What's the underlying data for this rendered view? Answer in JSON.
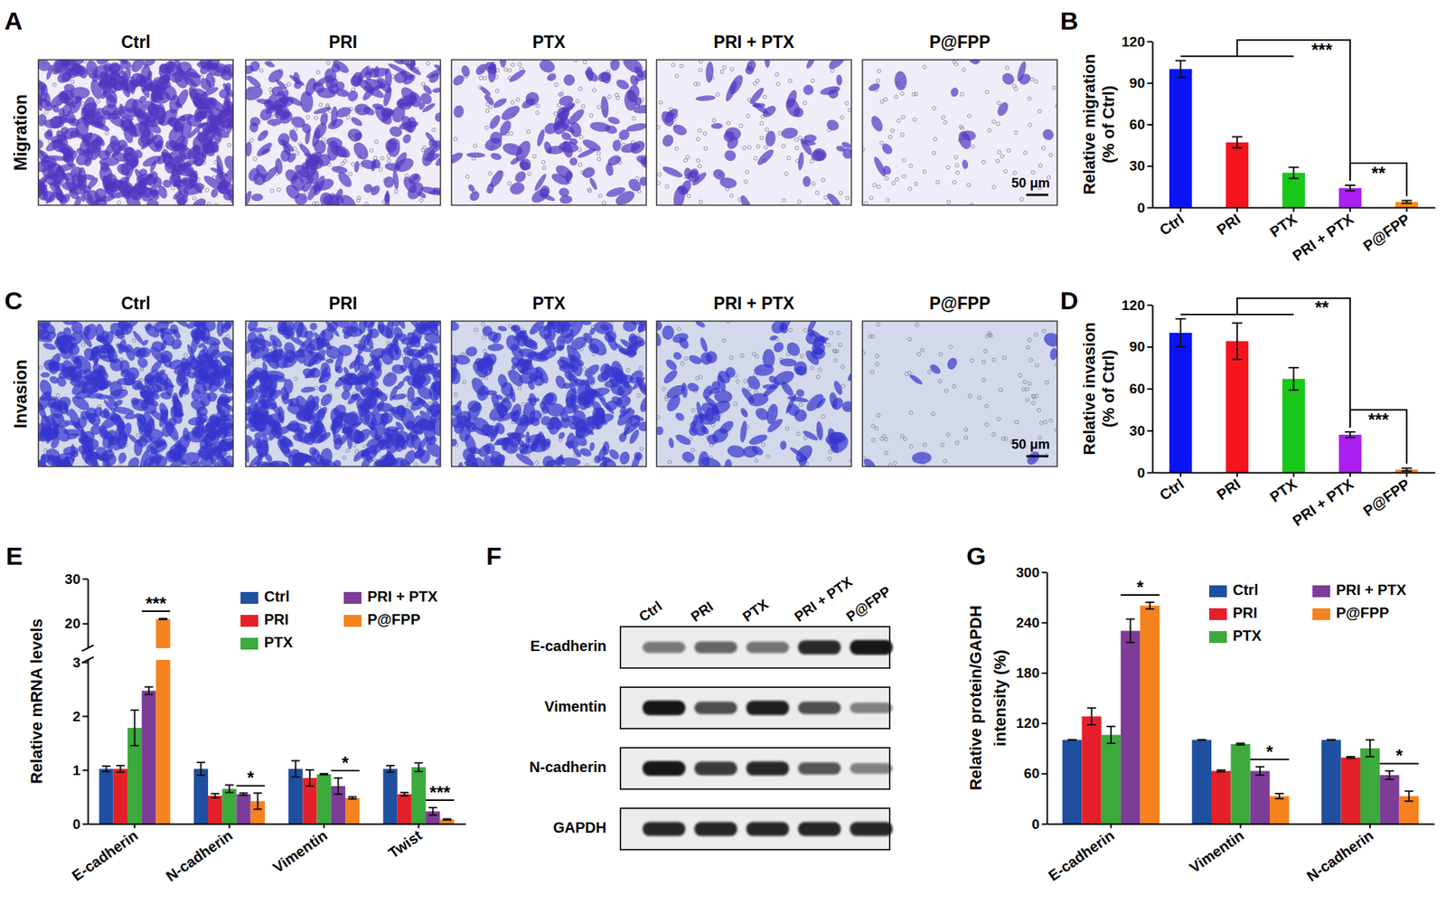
{
  "micrographs": [
    {
      "panel": "A",
      "row_label": "Migration",
      "titles": [
        "Ctrl",
        "PRI",
        "PTX",
        "PRI + PTX",
        "P@FPP"
      ],
      "scale_bar": "50 μm"
    },
    {
      "panel": "C",
      "row_label": "Invasion",
      "titles": [
        "Ctrl",
        "PRI",
        "PTX",
        "PRI + PTX",
        "P@FPP"
      ],
      "scale_bar": "50 μm"
    }
  ],
  "blot": {
    "panel": "F",
    "lanes": [
      "Ctrl",
      "PRI",
      "PTX",
      "PRI + PTX",
      "P@FPP"
    ],
    "proteins": [
      "E-cadherin",
      "Vimentin",
      "N-cadherin",
      "GAPDH"
    ]
  },
  "chart_data": [
    {
      "panel": "B",
      "type": "bar",
      "y_label": [
        "Relative migration",
        "(% of Ctrl)"
      ],
      "categories": [
        "Ctrl",
        "PRI",
        "PTX",
        "PRI + PTX",
        "P@FPP"
      ],
      "values": [
        100,
        47,
        25,
        14,
        4
      ],
      "errors": [
        6,
        4,
        4,
        2,
        1
      ],
      "colors": [
        "#0a14f5",
        "#f5141e",
        "#19c819",
        "#aa1ef0",
        "#ff8c0a"
      ],
      "ylim": [
        0,
        120
      ],
      "yticks": [
        0,
        30,
        60,
        90,
        120
      ],
      "annotations": [
        {
          "text": "***",
          "ref": "Ctrl",
          "vs": [
            "PRI",
            "PTX",
            "PRI + PTX"
          ]
        },
        {
          "text": "**",
          "between": [
            "PRI + PTX",
            "P@FPP"
          ]
        }
      ]
    },
    {
      "panel": "D",
      "type": "bar",
      "y_label": [
        "Relative invasion",
        "(% of Ctrl)"
      ],
      "categories": [
        "Ctrl",
        "PRI",
        "PTX",
        "PRI + PTX",
        "P@FPP"
      ],
      "values": [
        100,
        94,
        67,
        27,
        2
      ],
      "errors": [
        10,
        13,
        8,
        2,
        1
      ],
      "colors": [
        "#0a14f5",
        "#f5141e",
        "#19c819",
        "#aa1ef0",
        "#ff8c0a"
      ],
      "ylim": [
        0,
        120
      ],
      "yticks": [
        0,
        30,
        60,
        90,
        120
      ],
      "annotations": [
        {
          "text": "**",
          "ref": "Ctrl",
          "vs": [
            "PRI",
            "PTX",
            "PRI + PTX"
          ]
        },
        {
          "text": "***",
          "between": [
            "PRI + PTX",
            "P@FPP"
          ]
        }
      ]
    },
    {
      "panel": "E",
      "type": "bar",
      "y_label": [
        "Relative mRNA levels"
      ],
      "categories": [
        "E-cadherin",
        "N-cadherin",
        "Vimentin",
        "Twist"
      ],
      "series": [
        {
          "name": "Ctrl",
          "color": "#1f4f9f",
          "values": [
            1.02,
            1.02,
            1.02,
            1.02
          ],
          "errors": [
            0.05,
            0.12,
            0.15,
            0.06
          ]
        },
        {
          "name": "PRI",
          "color": "#e5202a",
          "values": [
            1.02,
            0.52,
            0.85,
            0.55
          ],
          "errors": [
            0.06,
            0.04,
            0.15,
            0.03
          ]
        },
        {
          "name": "PTX",
          "color": "#3caa3c",
          "values": [
            1.78,
            0.65,
            0.92,
            1.05
          ],
          "errors": [
            0.33,
            0.07,
            0.01,
            0.08
          ]
        },
        {
          "name": "PRI + PTX",
          "color": "#7d3c98",
          "values": [
            2.47,
            0.55,
            0.7,
            0.23
          ],
          "errors": [
            0.07,
            0.02,
            0.15,
            0.07
          ]
        },
        {
          "name": "P@FPP",
          "color": "#f5821f",
          "values": [
            21,
            0.42,
            0.48,
            0.08
          ],
          "errors": [
            0.1,
            0.15,
            0.02,
            0.01
          ]
        }
      ],
      "ylim": [
        0,
        30
      ],
      "y_break": [
        3,
        15
      ],
      "yticks": [
        0,
        1,
        2,
        3,
        20,
        30
      ],
      "legend": "upper right",
      "annotations": [
        {
          "text": "***",
          "category": "E-cadherin",
          "between": [
            "PRI + PTX",
            "P@FPP"
          ]
        },
        {
          "text": "*",
          "category": "N-cadherin",
          "between": [
            "PRI + PTX",
            "P@FPP"
          ]
        },
        {
          "text": "*",
          "category": "Vimentin",
          "between": [
            "PRI + PTX",
            "P@FPP"
          ]
        },
        {
          "text": "***",
          "category": "Twist",
          "between": [
            "PRI + PTX",
            "P@FPP"
          ]
        }
      ]
    },
    {
      "panel": "G",
      "type": "bar",
      "y_label": [
        "Relative protein/GAPDH",
        "intensity (%)"
      ],
      "categories": [
        "E-cadherin",
        "Vimentin",
        "N-cadherin"
      ],
      "series": [
        {
          "name": "Ctrl",
          "color": "#1f4f9f",
          "values": [
            100,
            100,
            100
          ],
          "errors": [
            0,
            0,
            0
          ]
        },
        {
          "name": "PRI",
          "color": "#e5202a",
          "values": [
            128,
            63,
            79
          ],
          "errors": [
            10,
            1,
            1
          ]
        },
        {
          "name": "PTX",
          "color": "#3caa3c",
          "values": [
            106,
            95,
            90
          ],
          "errors": [
            10,
            1,
            10
          ]
        },
        {
          "name": "PRI + PTX",
          "color": "#7d3c98",
          "values": [
            230,
            63,
            58
          ],
          "errors": [
            14,
            5,
            5
          ]
        },
        {
          "name": "P@FPP",
          "color": "#f5821f",
          "values": [
            260,
            33,
            33
          ],
          "errors": [
            4,
            3,
            6
          ]
        }
      ],
      "ylim": [
        0,
        300
      ],
      "yticks": [
        0,
        60,
        120,
        180,
        240,
        300
      ],
      "legend": "upper right",
      "annotations": [
        {
          "text": "*",
          "category": "E-cadherin",
          "between": [
            "PRI + PTX",
            "P@FPP"
          ]
        },
        {
          "text": "*",
          "category": "Vimentin",
          "between": [
            "PRI + PTX",
            "P@FPP"
          ]
        },
        {
          "text": "*",
          "category": "N-cadherin",
          "between": [
            "PRI + PTX",
            "P@FPP"
          ]
        }
      ]
    }
  ]
}
